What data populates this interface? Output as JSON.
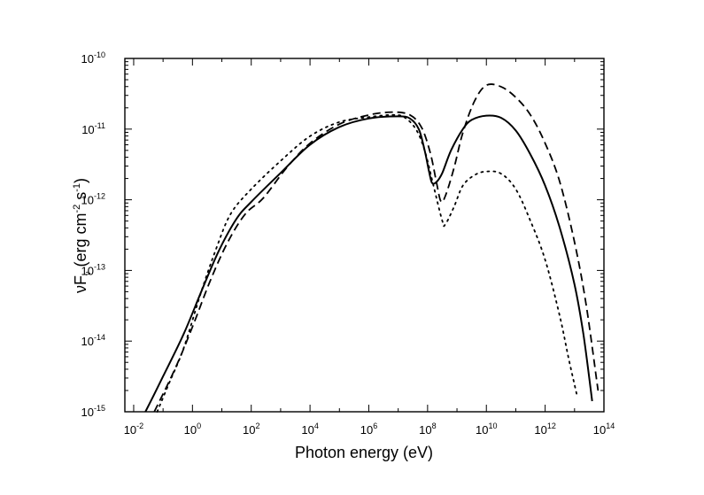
{
  "chart_data": {
    "type": "line",
    "title": "",
    "xlabel": {
      "text": "Photon energy (eV)"
    },
    "ylabel": {
      "nu": "ν",
      "f": "F",
      "sub": "ν",
      "open": " (erg cm",
      "sup1": "-2",
      "mid": " s",
      "sup2": "-1",
      "close": ")"
    },
    "x_scale": "log",
    "y_scale": "log",
    "xlim_log10": [
      -2.3,
      14.0
    ],
    "ylim_log10": [
      -15,
      -10
    ],
    "x_ticks": [
      {
        "base": "10",
        "exp": "-2",
        "log10": -2
      },
      {
        "base": "10",
        "exp": "0",
        "log10": 0
      },
      {
        "base": "10",
        "exp": "2",
        "log10": 2
      },
      {
        "base": "10",
        "exp": "4",
        "log10": 4
      },
      {
        "base": "10",
        "exp": "6",
        "log10": 6
      },
      {
        "base": "10",
        "exp": "8",
        "log10": 8
      },
      {
        "base": "10",
        "exp": "10",
        "log10": 10
      },
      {
        "base": "10",
        "exp": "12",
        "log10": 12
      },
      {
        "base": "10",
        "exp": "14",
        "log10": 14
      }
    ],
    "y_ticks": [
      {
        "base": "10",
        "exp": "-15",
        "log10": -15
      },
      {
        "base": "10",
        "exp": "-14",
        "log10": -14
      },
      {
        "base": "10",
        "exp": "-13",
        "log10": -13
      },
      {
        "base": "10",
        "exp": "-12",
        "log10": -12
      },
      {
        "base": "10",
        "exp": "-11",
        "log10": -11
      },
      {
        "base": "10",
        "exp": "-10",
        "log10": -10
      }
    ],
    "series": [
      {
        "name": "solid",
        "style": "solid",
        "points_log10": [
          [
            -1.6,
            -15.0
          ],
          [
            -1.0,
            -14.5
          ],
          [
            -0.3,
            -13.9
          ],
          [
            0.3,
            -13.3
          ],
          [
            0.9,
            -12.72
          ],
          [
            1.5,
            -12.27
          ],
          [
            2.0,
            -12.03
          ],
          [
            3.0,
            -11.62
          ],
          [
            4.0,
            -11.22
          ],
          [
            5.0,
            -10.97
          ],
          [
            6.0,
            -10.85
          ],
          [
            7.0,
            -10.82
          ],
          [
            7.4,
            -10.85
          ],
          [
            7.7,
            -11.0
          ],
          [
            7.9,
            -11.3
          ],
          [
            8.05,
            -11.6
          ],
          [
            8.15,
            -11.76
          ],
          [
            8.3,
            -11.75
          ],
          [
            8.5,
            -11.62
          ],
          [
            8.8,
            -11.3
          ],
          [
            9.2,
            -11.0
          ],
          [
            9.5,
            -10.87
          ],
          [
            10.0,
            -10.81
          ],
          [
            10.5,
            -10.84
          ],
          [
            11.0,
            -11.02
          ],
          [
            11.5,
            -11.36
          ],
          [
            12.0,
            -11.8
          ],
          [
            12.5,
            -12.4
          ],
          [
            13.0,
            -13.2
          ],
          [
            13.3,
            -13.9
          ],
          [
            13.6,
            -14.85
          ]
        ]
      },
      {
        "name": "dashed",
        "style": "dashed",
        "points_log10": [
          [
            -1.3,
            -15.0
          ],
          [
            -0.6,
            -14.4
          ],
          [
            0.0,
            -13.8
          ],
          [
            0.6,
            -13.15
          ],
          [
            1.2,
            -12.6
          ],
          [
            1.8,
            -12.2
          ],
          [
            2.4,
            -11.98
          ],
          [
            3.2,
            -11.55
          ],
          [
            4.0,
            -11.2
          ],
          [
            5.0,
            -10.93
          ],
          [
            6.0,
            -10.8
          ],
          [
            6.8,
            -10.76
          ],
          [
            7.4,
            -10.8
          ],
          [
            7.8,
            -10.98
          ],
          [
            8.1,
            -11.35
          ],
          [
            8.3,
            -11.75
          ],
          [
            8.45,
            -12.02
          ],
          [
            8.6,
            -11.95
          ],
          [
            8.9,
            -11.55
          ],
          [
            9.2,
            -11.05
          ],
          [
            9.6,
            -10.6
          ],
          [
            10.0,
            -10.38
          ],
          [
            10.5,
            -10.4
          ],
          [
            11.0,
            -10.55
          ],
          [
            11.5,
            -10.8
          ],
          [
            12.0,
            -11.2
          ],
          [
            12.5,
            -11.75
          ],
          [
            13.0,
            -12.6
          ],
          [
            13.4,
            -13.5
          ],
          [
            13.8,
            -14.7
          ]
        ]
      },
      {
        "name": "dotted",
        "style": "dotted",
        "points_log10": [
          [
            -1.2,
            -15.0
          ],
          [
            -0.8,
            -14.6
          ],
          [
            -0.3,
            -14.1
          ],
          [
            0.3,
            -13.3
          ],
          [
            0.8,
            -12.7
          ],
          [
            1.3,
            -12.2
          ],
          [
            2.0,
            -11.85
          ],
          [
            3.0,
            -11.45
          ],
          [
            4.0,
            -11.1
          ],
          [
            5.0,
            -10.9
          ],
          [
            6.0,
            -10.83
          ],
          [
            6.8,
            -10.8
          ],
          [
            7.2,
            -10.83
          ],
          [
            7.6,
            -11.0
          ],
          [
            7.9,
            -11.3
          ],
          [
            8.2,
            -11.8
          ],
          [
            8.5,
            -12.3
          ],
          [
            8.6,
            -12.35
          ],
          [
            8.9,
            -12.1
          ],
          [
            9.2,
            -11.8
          ],
          [
            9.6,
            -11.65
          ],
          [
            10.0,
            -11.6
          ],
          [
            10.5,
            -11.63
          ],
          [
            11.0,
            -11.85
          ],
          [
            11.5,
            -12.3
          ],
          [
            12.0,
            -12.85
          ],
          [
            12.5,
            -13.65
          ],
          [
            12.8,
            -14.25
          ],
          [
            13.1,
            -14.8
          ]
        ]
      }
    ]
  }
}
